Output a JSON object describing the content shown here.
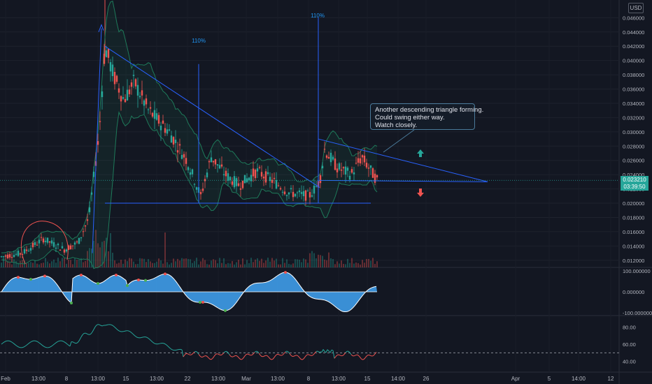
{
  "currency": "USD",
  "last_price": "0.023210",
  "countdown": "03:39:50",
  "callout": {
    "line1": "Another descending triangle forming.",
    "line2": "Could swing either way.",
    "line3": "Watch closely."
  },
  "annotations": {
    "pct1": "110%",
    "pct2": "110%"
  },
  "colors": {
    "background": "#131722",
    "up": "#26a69a",
    "down": "#ef5350",
    "trendline": "#2962ff",
    "band": "#1e7a5a",
    "oscillator": "#42a5f5",
    "rsi_up": "#26a69a",
    "rsi_down": "#ef5350"
  },
  "chart_data": [
    {
      "type": "candlestick",
      "title": "",
      "price_axis_ticks": [
        "0.046000",
        "0.044000",
        "0.042000",
        "0.040000",
        "0.038000",
        "0.036000",
        "0.034000",
        "0.032000",
        "0.030000",
        "0.028000",
        "0.026000",
        "0.024000",
        "0.022000",
        "0.020000",
        "0.018000",
        "0.016000",
        "0.014000",
        "0.012000"
      ],
      "ylim": [
        0.011,
        0.0475
      ],
      "time_axis_labels": [
        "Feb",
        "13:00",
        "8",
        "13:00",
        "15",
        "13:00",
        "22",
        "13:00",
        "Mar",
        "13:00",
        "8",
        "13:00",
        "15",
        "14:00",
        "26",
        "Apr",
        "5",
        "14:00",
        "12"
      ],
      "key_points": [
        {
          "t": 0,
          "price": 0.0125
        },
        {
          "t": 30,
          "price": 0.013
        },
        {
          "t": 60,
          "price": 0.015
        },
        {
          "t": 90,
          "price": 0.0135
        },
        {
          "t": 110,
          "price": 0.0145
        },
        {
          "t": 125,
          "price": 0.018
        },
        {
          "t": 140,
          "price": 0.03
        },
        {
          "t": 148,
          "price": 0.042
        },
        {
          "t": 160,
          "price": 0.038
        },
        {
          "t": 175,
          "price": 0.0345
        },
        {
          "t": 190,
          "price": 0.037
        },
        {
          "t": 210,
          "price": 0.033
        },
        {
          "t": 240,
          "price": 0.03
        },
        {
          "t": 265,
          "price": 0.026
        },
        {
          "t": 285,
          "price": 0.021
        },
        {
          "t": 300,
          "price": 0.0265
        },
        {
          "t": 320,
          "price": 0.024
        },
        {
          "t": 340,
          "price": 0.0225
        },
        {
          "t": 365,
          "price": 0.0245
        },
        {
          "t": 390,
          "price": 0.023
        },
        {
          "t": 410,
          "price": 0.0215
        },
        {
          "t": 440,
          "price": 0.021
        },
        {
          "t": 455,
          "price": 0.023
        },
        {
          "t": 462,
          "price": 0.0275
        },
        {
          "t": 480,
          "price": 0.025
        },
        {
          "t": 500,
          "price": 0.024
        },
        {
          "t": 515,
          "price": 0.0265
        },
        {
          "t": 537,
          "price": 0.0232
        }
      ],
      "levels": {
        "support": 0.02,
        "triangle1_top_start": 0.042,
        "triangle2_top_start": 0.0285,
        "current": 0.02321
      }
    },
    {
      "type": "area",
      "title": "",
      "axis_ticks": [
        "100.000000",
        "0.000000",
        "-100.000000"
      ],
      "ylim": [
        -100,
        100
      ]
    },
    {
      "type": "line",
      "title": "",
      "axis_ticks": [
        "80.00",
        "60.00",
        "40.00"
      ],
      "ylim": [
        30,
        90
      ],
      "threshold": 50
    }
  ]
}
